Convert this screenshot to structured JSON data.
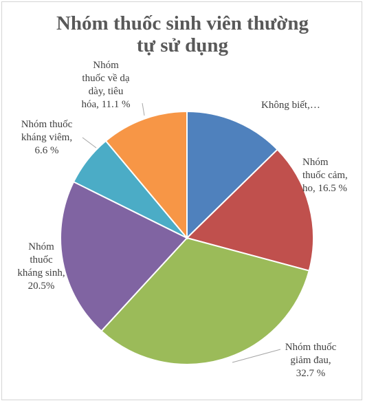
{
  "chart_data": {
    "type": "pie",
    "title_lines": [
      "Nhóm thuốc sinh viên thường",
      "tự sử dụng"
    ],
    "slices": [
      {
        "label_lines": [
          "Không biết,…"
        ],
        "value": 12.7,
        "color": "#4f81bd"
      },
      {
        "label_lines": [
          "Nhóm",
          "thuốc cảm,",
          "ho, 16.5 %"
        ],
        "value": 16.5,
        "color": "#c0504d"
      },
      {
        "label_lines": [
          "Nhóm thuốc",
          "giảm đau,",
          "32.7 %"
        ],
        "value": 32.7,
        "color": "#9bbb59"
      },
      {
        "label_lines": [
          "Nhóm",
          "thuốc",
          "kháng sinh,",
          "20.5%"
        ],
        "value": 20.5,
        "color": "#8064a2"
      },
      {
        "label_lines": [
          "Nhóm thuốc",
          "kháng viêm,",
          "6.6 %"
        ],
        "value": 6.6,
        "color": "#4bacc6"
      },
      {
        "label_lines": [
          "Nhóm",
          "thuốc về dạ",
          "dày, tiêu",
          "hóa, 11.1 %"
        ],
        "value": 11.1,
        "color": "#f79646"
      }
    ],
    "legend": "none"
  }
}
